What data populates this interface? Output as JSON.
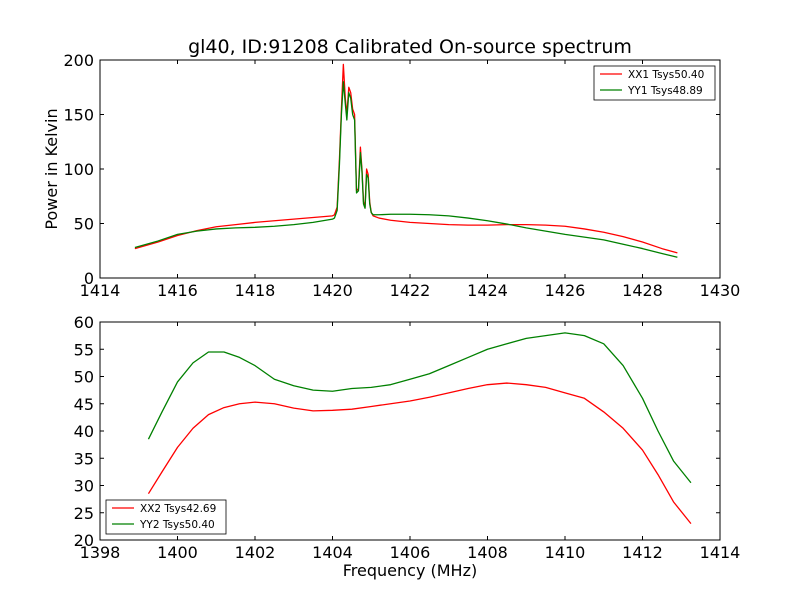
{
  "chart_data": [
    {
      "type": "line",
      "title": "gl40, ID:91208 Calibrated On-source spectrum",
      "xlabel": "",
      "ylabel": "Power in Kelvin",
      "xlim": [
        1414,
        1430
      ],
      "ylim": [
        0,
        200
      ],
      "xticks": [
        "1414",
        "1416",
        "1418",
        "1420",
        "1422",
        "1424",
        "1426",
        "1428",
        "1430"
      ],
      "yticks": [
        "0",
        "50",
        "100",
        "150",
        "200"
      ],
      "grid": false,
      "legend_position": "top-right",
      "series": [
        {
          "name": "XX1 Tsys50.40",
          "color": "#ff0000",
          "x": [
            1414.9,
            1415.5,
            1416.0,
            1416.5,
            1417.0,
            1417.5,
            1418.0,
            1418.5,
            1419.0,
            1419.5,
            1420.0,
            1420.05,
            1420.12,
            1420.18,
            1420.23,
            1420.28,
            1420.33,
            1420.37,
            1420.42,
            1420.47,
            1420.52,
            1420.57,
            1420.62,
            1420.67,
            1420.72,
            1420.76,
            1420.8,
            1420.84,
            1420.88,
            1420.92,
            1420.96,
            1421.0,
            1421.05,
            1421.2,
            1421.5,
            1422.0,
            1422.5,
            1423.0,
            1423.5,
            1424.0,
            1424.5,
            1425.0,
            1425.5,
            1426.0,
            1426.5,
            1427.0,
            1427.5,
            1428.0,
            1428.5,
            1428.9
          ],
          "y": [
            27,
            33,
            39,
            43.5,
            47,
            49,
            51,
            52.5,
            54,
            55.5,
            57,
            58,
            65,
            110,
            155,
            196,
            165,
            150,
            175,
            170,
            155,
            150,
            80,
            82,
            120,
            100,
            70,
            65,
            100,
            95,
            70,
            60,
            57,
            55,
            53,
            51,
            50,
            49,
            48.5,
            48.5,
            49,
            49,
            48.5,
            47.5,
            45,
            42,
            38,
            33,
            27,
            23
          ]
        },
        {
          "name": "YY1 Tsys48.89",
          "color": "#008000",
          "x": [
            1414.9,
            1415.5,
            1416.0,
            1416.5,
            1417.0,
            1417.5,
            1418.0,
            1418.5,
            1419.0,
            1419.5,
            1420.0,
            1420.05,
            1420.12,
            1420.18,
            1420.23,
            1420.28,
            1420.33,
            1420.37,
            1420.42,
            1420.47,
            1420.52,
            1420.57,
            1420.62,
            1420.67,
            1420.72,
            1420.76,
            1420.8,
            1420.84,
            1420.88,
            1420.92,
            1420.96,
            1421.0,
            1421.05,
            1421.2,
            1421.5,
            1422.0,
            1422.5,
            1423.0,
            1423.5,
            1424.0,
            1424.5,
            1425.0,
            1425.5,
            1426.0,
            1426.5,
            1427.0,
            1427.5,
            1428.0,
            1428.5,
            1428.9
          ],
          "y": [
            28,
            34,
            40,
            43,
            45,
            46,
            46.5,
            47.5,
            49,
            51,
            54,
            55,
            62,
            105,
            150,
            180,
            160,
            145,
            170,
            165,
            150,
            145,
            78,
            80,
            115,
            98,
            68,
            64,
            95,
            92,
            68,
            60,
            58,
            58,
            58.5,
            58.5,
            58,
            57,
            55,
            52.5,
            49.5,
            46,
            43,
            40,
            37.5,
            35,
            31,
            27,
            22.5,
            19
          ]
        }
      ]
    },
    {
      "type": "line",
      "title": "",
      "xlabel": "Frequency (MHz)",
      "ylabel": "",
      "xlim": [
        1398,
        1414
      ],
      "ylim": [
        20,
        60
      ],
      "xticks": [
        "1398",
        "1400",
        "1402",
        "1404",
        "1406",
        "1408",
        "1410",
        "1412",
        "1414"
      ],
      "yticks": [
        "20",
        "25",
        "30",
        "35",
        "40",
        "45",
        "50",
        "55",
        "60"
      ],
      "grid": false,
      "legend_position": "bottom-left",
      "series": [
        {
          "name": "XX2 Tsys42.69",
          "color": "#ff0000",
          "x": [
            1399.25,
            1399.6,
            1400.0,
            1400.4,
            1400.8,
            1401.2,
            1401.6,
            1402.0,
            1402.5,
            1403.0,
            1403.5,
            1404.0,
            1404.5,
            1405.0,
            1405.5,
            1406.0,
            1406.5,
            1407.0,
            1407.5,
            1408.0,
            1408.5,
            1409.0,
            1409.5,
            1410.0,
            1410.5,
            1411.0,
            1411.5,
            1412.0,
            1412.4,
            1412.8,
            1413.25
          ],
          "y": [
            28.5,
            32.5,
            37,
            40.5,
            43,
            44.3,
            45.0,
            45.3,
            45,
            44.2,
            43.7,
            43.8,
            44,
            44.5,
            45,
            45.5,
            46.2,
            47,
            47.8,
            48.5,
            48.8,
            48.5,
            48,
            47,
            46,
            43.5,
            40.5,
            36.5,
            32,
            27,
            23
          ]
        },
        {
          "name": "YY2 Tsys50.40",
          "color": "#008000",
          "x": [
            1399.25,
            1399.6,
            1400.0,
            1400.4,
            1400.8,
            1401.2,
            1401.6,
            1402.0,
            1402.5,
            1403.0,
            1403.5,
            1404.0,
            1404.5,
            1405.0,
            1405.5,
            1406.0,
            1406.5,
            1407.0,
            1407.5,
            1408.0,
            1408.5,
            1409.0,
            1409.5,
            1410.0,
            1410.5,
            1411.0,
            1411.5,
            1412.0,
            1412.4,
            1412.8,
            1413.25
          ],
          "y": [
            38.5,
            43.5,
            49,
            52.5,
            54.5,
            54.5,
            53.5,
            52,
            49.5,
            48.3,
            47.5,
            47.3,
            47.8,
            48,
            48.5,
            49.5,
            50.5,
            52,
            53.5,
            55,
            56,
            57,
            57.5,
            58,
            57.5,
            56,
            52,
            46,
            40,
            34.5,
            30.5
          ]
        }
      ]
    }
  ]
}
